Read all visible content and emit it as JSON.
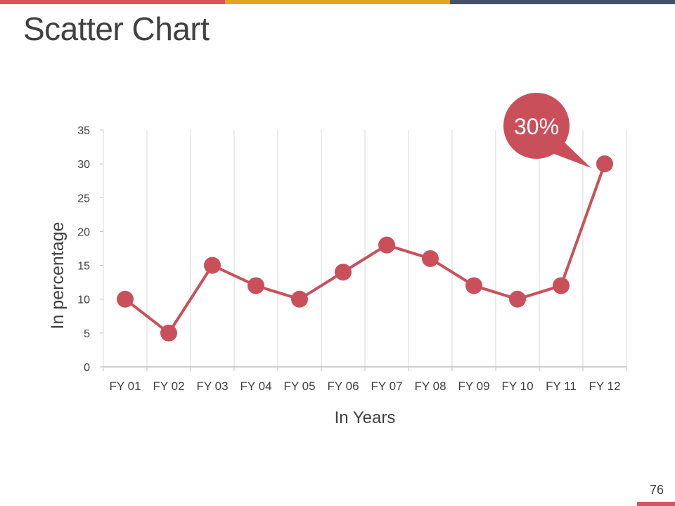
{
  "slide": {
    "title": "Scatter Chart",
    "page_number": "76"
  },
  "colors": {
    "series": "#c9505a",
    "bar_red": "#d9555d",
    "bar_gold": "#e3a51f",
    "bar_navy": "#45526a",
    "grid": "#d9d9d9",
    "axis": "#bfbfbf",
    "text": "#404040",
    "callout_text": "#ffffff"
  },
  "chart_data": {
    "type": "line",
    "title": "",
    "xlabel": "In Years",
    "ylabel": "In percentage",
    "categories": [
      "FY 01",
      "FY 02",
      "FY 03",
      "FY 04",
      "FY 05",
      "FY 06",
      "FY 07",
      "FY 08",
      "FY 09",
      "FY 10",
      "FY 11",
      "FY 12"
    ],
    "series": [
      {
        "values": [
          10,
          5,
          15,
          12,
          10,
          14,
          18,
          16,
          12,
          10,
          12,
          30
        ]
      }
    ],
    "ylim": [
      0,
      35
    ],
    "yticks": [
      0,
      5,
      10,
      15,
      20,
      25,
      30,
      35
    ],
    "grid": "vertical",
    "markers": true,
    "annotation": {
      "text": "30%",
      "target_category": "FY 12",
      "target_value": 30
    }
  }
}
